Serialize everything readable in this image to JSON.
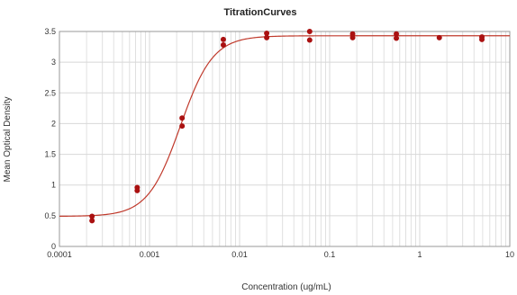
{
  "chart_data": {
    "type": "scatter",
    "title": "TitrationCurves",
    "xlabel": "Concentration (ug/mL)",
    "ylabel": "Mean Optical Density",
    "x_scale": "log",
    "xlim": [
      0.0001,
      10
    ],
    "ylim": [
      0,
      3.5
    ],
    "x_ticks": [
      0.0001,
      0.001,
      0.01,
      0.1,
      1,
      10
    ],
    "x_tick_labels": [
      "0.0001",
      "0.001",
      "0.01",
      "0.1",
      "1",
      "10"
    ],
    "y_ticks": [
      0,
      0.5,
      1,
      1.5,
      2,
      2.5,
      3,
      3.5
    ],
    "y_tick_labels": [
      "0",
      "0.5",
      "1",
      "1.5",
      "2",
      "2.5",
      "3",
      "3.5"
    ],
    "grid": true,
    "legend": "none",
    "colors": {
      "points": "#aa1111",
      "curve": "#c0392b",
      "grid": "#d8d8d8",
      "frame": "#999999"
    },
    "series": [
      {
        "type": "scatter",
        "points": [
          {
            "x": 0.00023,
            "y": 0.49
          },
          {
            "x": 0.00023,
            "y": 0.42
          },
          {
            "x": 0.00073,
            "y": 0.96
          },
          {
            "x": 0.00073,
            "y": 0.91
          },
          {
            "x": 0.0023,
            "y": 2.09
          },
          {
            "x": 0.0023,
            "y": 1.96
          },
          {
            "x": 0.0066,
            "y": 3.37
          },
          {
            "x": 0.0066,
            "y": 3.28
          },
          {
            "x": 0.02,
            "y": 3.47
          },
          {
            "x": 0.02,
            "y": 3.4
          },
          {
            "x": 0.06,
            "y": 3.5
          },
          {
            "x": 0.06,
            "y": 3.36
          },
          {
            "x": 0.18,
            "y": 3.46
          },
          {
            "x": 0.18,
            "y": 3.4
          },
          {
            "x": 0.55,
            "y": 3.46
          },
          {
            "x": 0.55,
            "y": 3.39
          },
          {
            "x": 1.65,
            "y": 3.4
          },
          {
            "x": 4.9,
            "y": 3.41
          },
          {
            "x": 4.9,
            "y": 3.37
          }
        ]
      },
      {
        "type": "line",
        "fit": {
          "bottom": 0.49,
          "top": 3.43,
          "ec50": 0.0022,
          "hill": 2.4
        }
      }
    ]
  }
}
